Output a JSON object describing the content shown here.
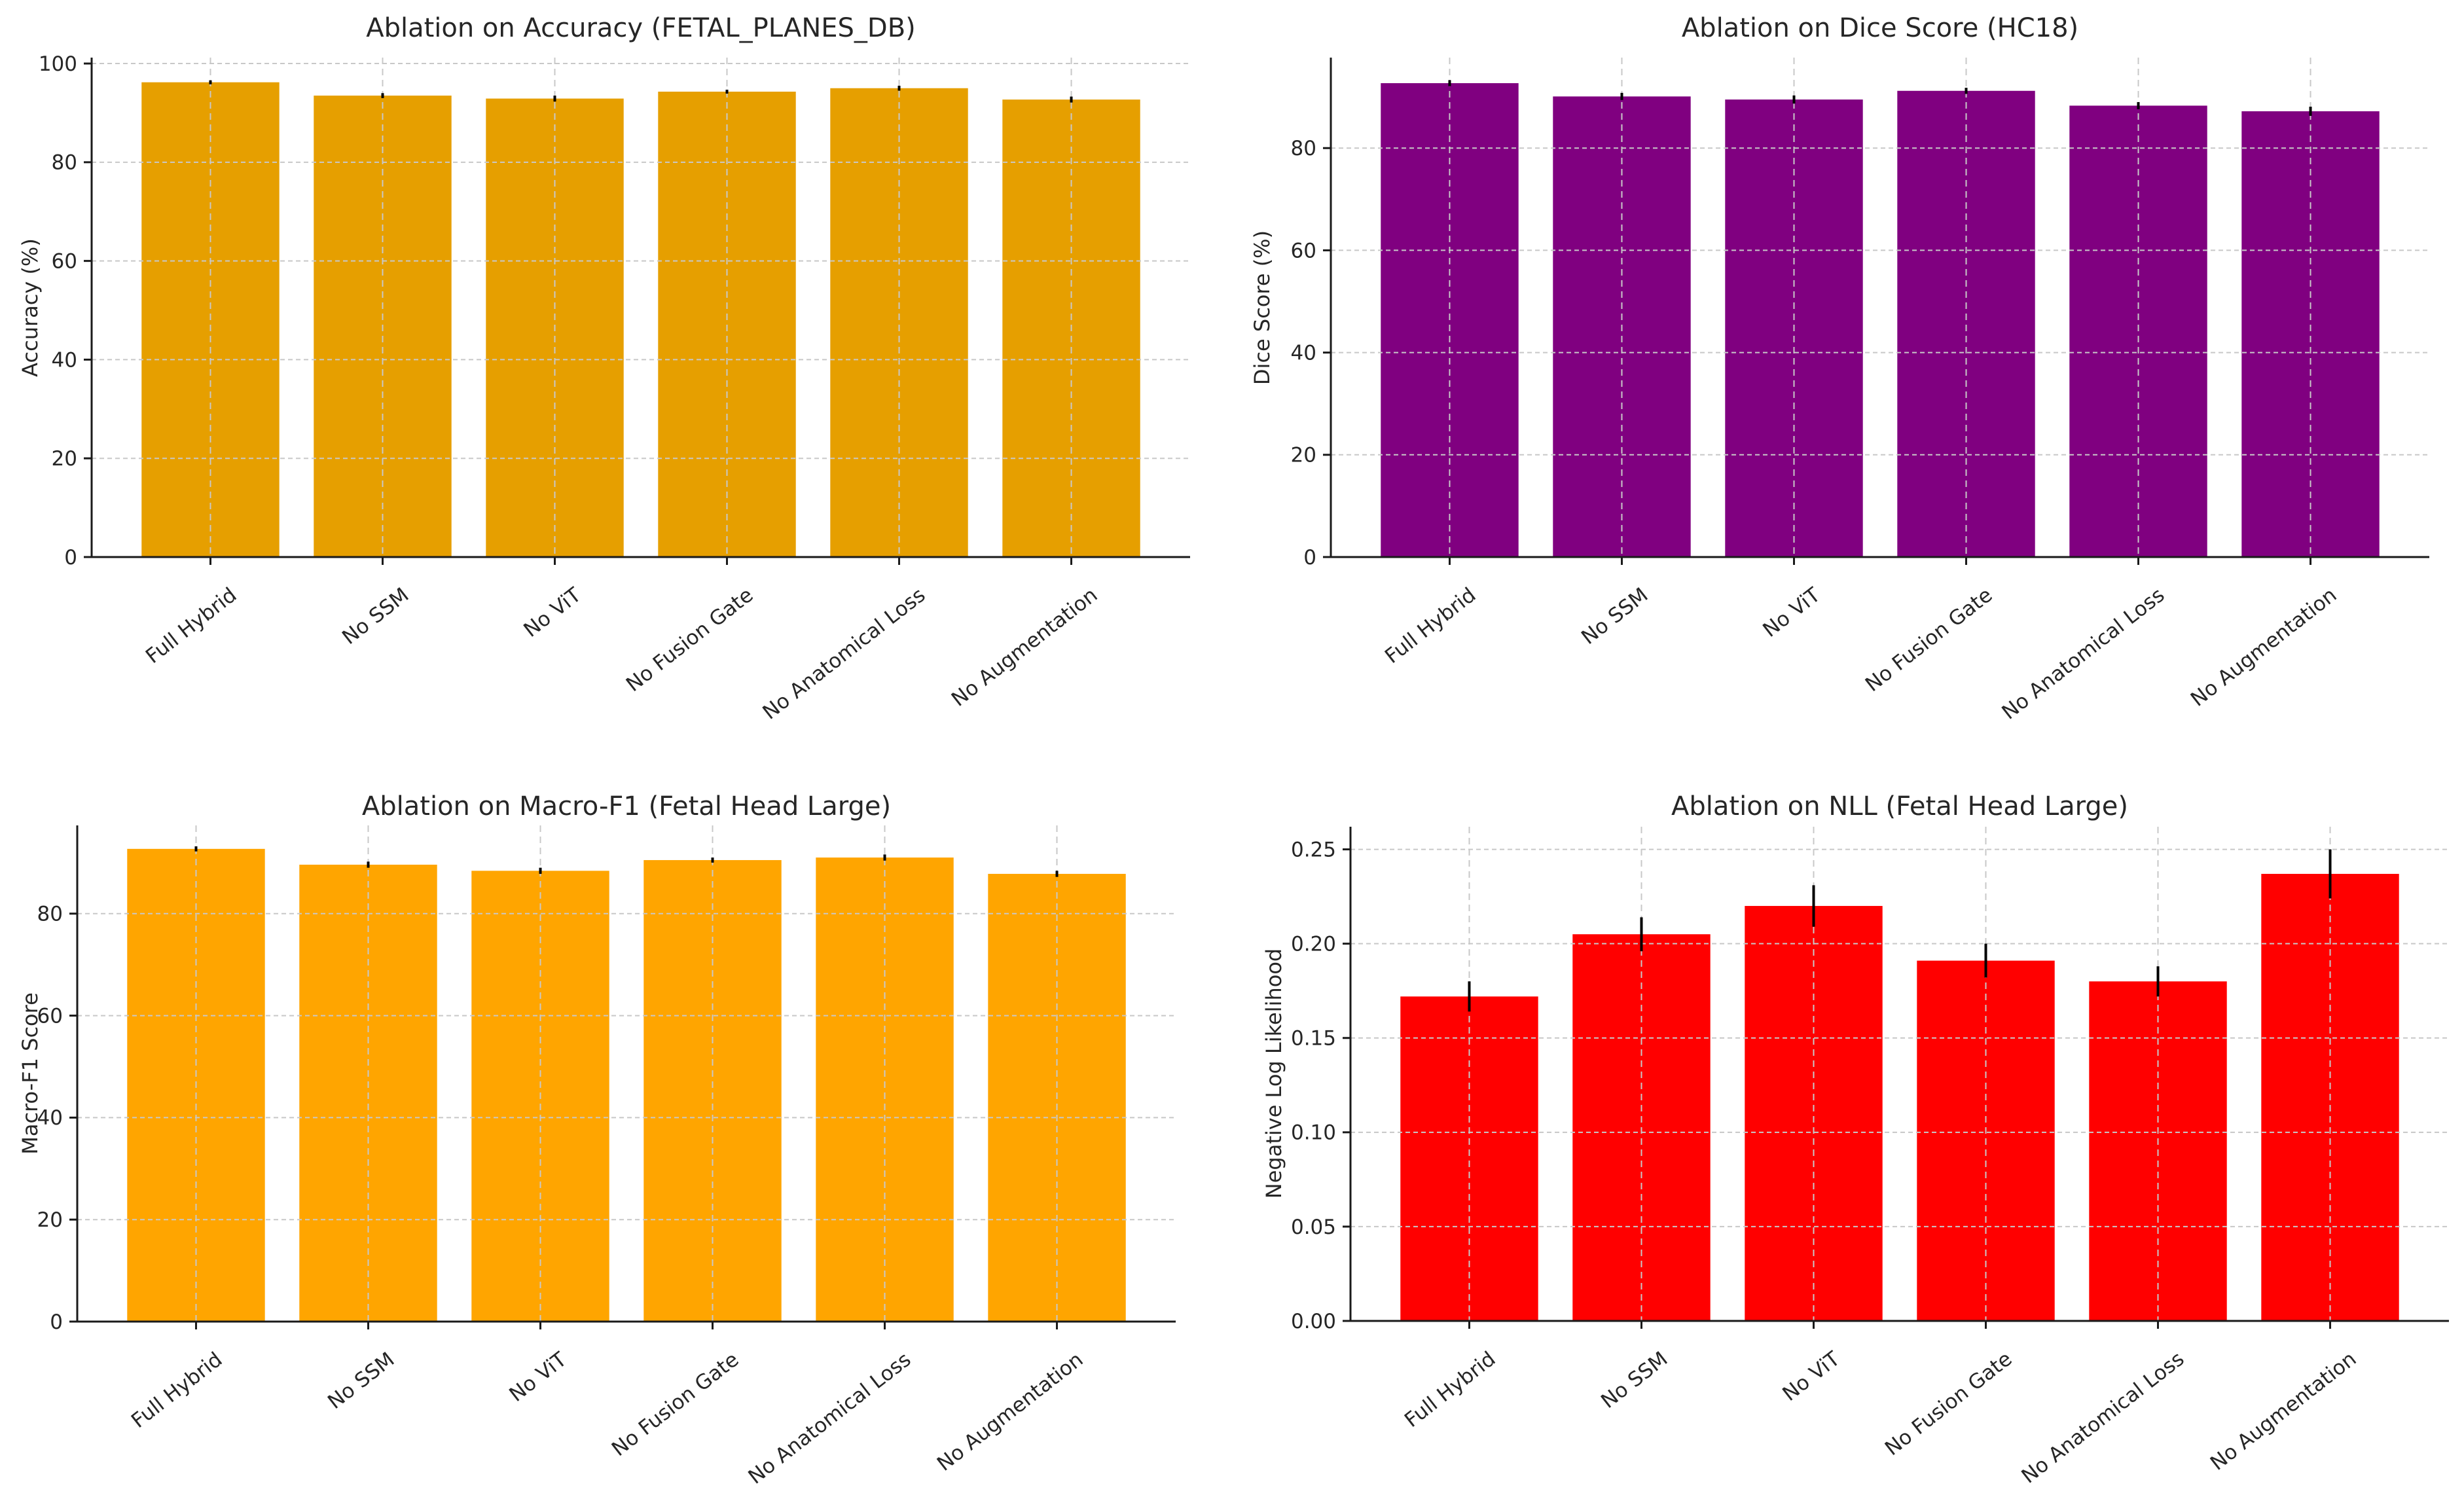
{
  "figure": {
    "background": "#FFFFFF",
    "text_color": "#262626",
    "grid_color": "#C8C8C8",
    "spine_color": "#1A1A1A",
    "errorbar_color": "#000000"
  },
  "chart_data": [
    {
      "type": "bar",
      "title": "Ablation on Accuracy (FETAL_PLANES_DB)",
      "ylabel": "Accuracy (%)",
      "xlabel": "",
      "bar_color": "#E69F00",
      "grid": true,
      "legend": null,
      "ylim": [
        0,
        101.2
      ],
      "categories": [
        "Full Hybrid",
        "No SSM",
        "No ViT",
        "No Fusion Gate",
        "No Anatomical Loss",
        "No Augmentation"
      ],
      "values": [
        96.2,
        93.5,
        92.9,
        94.3,
        95.0,
        92.7
      ],
      "errors": [
        0.4,
        0.5,
        0.6,
        0.4,
        0.5,
        0.6
      ],
      "yticks": [
        {
          "value": 0,
          "label": "0"
        },
        {
          "value": 20,
          "label": "20"
        },
        {
          "value": 40,
          "label": "40"
        },
        {
          "value": 60,
          "label": "60"
        },
        {
          "value": 80,
          "label": "80"
        },
        {
          "value": 100,
          "label": "100"
        }
      ]
    },
    {
      "type": "bar",
      "title": "Ablation on Dice Score (HC18)",
      "ylabel": "Dice Score (%)",
      "xlabel": "",
      "bar_color": "#800080",
      "grid": true,
      "legend": null,
      "ylim": [
        0,
        97.7
      ],
      "categories": [
        "Full Hybrid",
        "No SSM",
        "No ViT",
        "No Fusion Gate",
        "No Anatomical Loss",
        "No Augmentation"
      ],
      "values": [
        92.7,
        90.1,
        89.5,
        91.2,
        88.3,
        87.2
      ],
      "errors": [
        0.6,
        0.7,
        0.8,
        0.6,
        0.7,
        0.9
      ],
      "yticks": [
        {
          "value": 0,
          "label": "0"
        },
        {
          "value": 20,
          "label": "20"
        },
        {
          "value": 40,
          "label": "40"
        },
        {
          "value": 60,
          "label": "60"
        },
        {
          "value": 80,
          "label": "80"
        }
      ]
    },
    {
      "type": "bar",
      "title": "Ablation on Macro-F1 (Fetal Head Large)",
      "ylabel": "Macro-F1 Score",
      "xlabel": "",
      "bar_color": "#FFA500",
      "grid": true,
      "legend": null,
      "ylim": [
        0,
        97.3
      ],
      "categories": [
        "Full Hybrid",
        "No SSM",
        "No ViT",
        "No Fusion Gate",
        "No Anatomical Loss",
        "No Augmentation"
      ],
      "values": [
        92.7,
        89.6,
        88.4,
        90.5,
        91.0,
        87.8
      ],
      "errors": [
        0.5,
        0.6,
        0.6,
        0.5,
        0.6,
        0.6
      ],
      "yticks": [
        {
          "value": 0,
          "label": "0"
        },
        {
          "value": 20,
          "label": "20"
        },
        {
          "value": 40,
          "label": "40"
        },
        {
          "value": 60,
          "label": "60"
        },
        {
          "value": 80,
          "label": "80"
        }
      ]
    },
    {
      "type": "bar",
      "title": "Ablation on NLL (Fetal Head Large)",
      "ylabel": "Negative Log Likelihood",
      "xlabel": "",
      "bar_color": "#FF0000",
      "grid": true,
      "legend": null,
      "ylim": [
        0,
        0.262
      ],
      "categories": [
        "Full Hybrid",
        "No SSM",
        "No ViT",
        "No Fusion Gate",
        "No Anatomical Loss",
        "No Augmentation"
      ],
      "values": [
        0.172,
        0.205,
        0.22,
        0.191,
        0.18,
        0.237
      ],
      "errors": [
        0.008,
        0.009,
        0.011,
        0.009,
        0.008,
        0.013
      ],
      "yticks": [
        {
          "value": 0,
          "label": "0.00"
        },
        {
          "value": 0.05,
          "label": "0.05"
        },
        {
          "value": 0.1,
          "label": "0.10"
        },
        {
          "value": 0.15,
          "label": "0.15"
        },
        {
          "value": 0.2,
          "label": "0.20"
        },
        {
          "value": 0.25,
          "label": "0.25"
        }
      ]
    }
  ]
}
